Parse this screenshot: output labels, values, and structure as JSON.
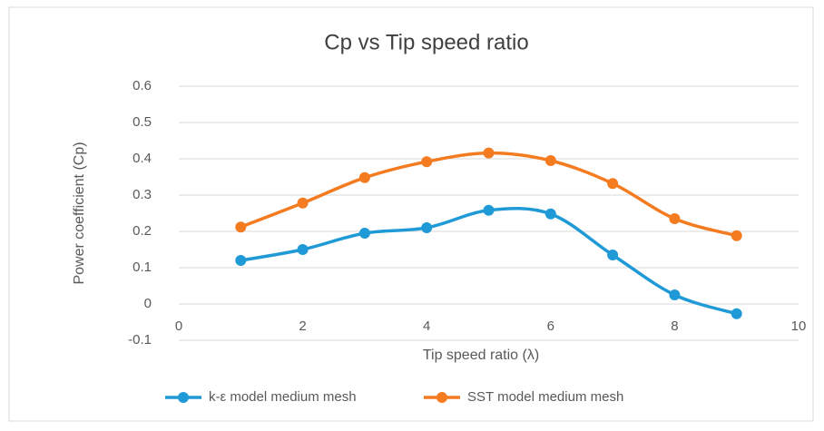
{
  "chart_data": {
    "type": "line",
    "title": "Cp vs Tip speed ratio",
    "xlabel": "Tip speed ratio (λ)",
    "ylabel": "Power coefficient (Cp)",
    "x": [
      1,
      2,
      3,
      4,
      5,
      6,
      7,
      8,
      9
    ],
    "series": [
      {
        "name": "k-ε model medium mesh",
        "color": "#1f9ad6",
        "values": [
          0.12,
          0.15,
          0.195,
          0.21,
          0.258,
          0.248,
          0.135,
          0.025,
          -0.027
        ]
      },
      {
        "name": "SST model medium mesh",
        "color": "#f47b20",
        "values": [
          0.212,
          0.278,
          0.348,
          0.392,
          0.416,
          0.395,
          0.332,
          0.235,
          0.188
        ]
      }
    ],
    "xlim": [
      0,
      10
    ],
    "xticks": [
      0,
      2,
      4,
      6,
      8,
      10
    ],
    "ylim": [
      -0.1,
      0.6
    ],
    "yticks": [
      -0.1,
      0,
      0.1,
      0.2,
      0.3,
      0.4,
      0.5,
      0.6
    ],
    "grid": true,
    "smooth": true,
    "legend": "bottom"
  }
}
